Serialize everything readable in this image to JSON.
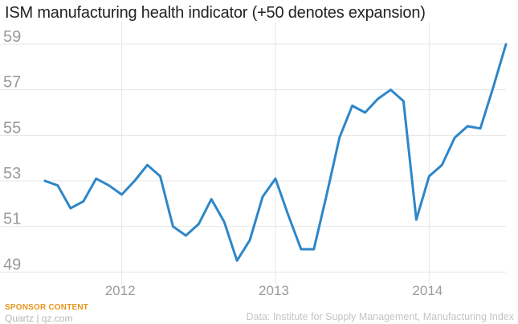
{
  "chart_data": {
    "type": "line",
    "title": "ISM manufacturing health indicator (+50 denotes expansion)",
    "xlabel": "",
    "ylabel": "",
    "ylim": [
      48.8,
      59.6
    ],
    "xlim": [
      "2011-06",
      "2014-07"
    ],
    "y_ticks": [
      "49",
      "51",
      "53",
      "55",
      "57",
      "59"
    ],
    "x_ticks": [
      {
        "label": "2012",
        "at": "2012-01"
      },
      {
        "label": "2013",
        "at": "2013-01"
      },
      {
        "label": "2014",
        "at": "2014-01"
      }
    ],
    "grid": true,
    "color": "#2e86c8",
    "series": [
      {
        "x": [
          "2011-07",
          "2011-08",
          "2011-09",
          "2011-10",
          "2011-11",
          "2011-12",
          "2012-01",
          "2012-02",
          "2012-03",
          "2012-04",
          "2012-05",
          "2012-06",
          "2012-07",
          "2012-08",
          "2012-09",
          "2012-10",
          "2012-11",
          "2012-12",
          "2013-01",
          "2013-02",
          "2013-03",
          "2013-04",
          "2013-05",
          "2013-06",
          "2013-07",
          "2013-08",
          "2013-09",
          "2013-10",
          "2013-11",
          "2013-12",
          "2014-01",
          "2014-02",
          "2014-03",
          "2014-04",
          "2014-05",
          "2014-06",
          "2014-07"
        ],
        "values": [
          53.0,
          52.8,
          51.8,
          52.1,
          53.1,
          52.8,
          52.4,
          53.0,
          53.7,
          53.2,
          51.0,
          50.6,
          51.1,
          52.2,
          51.2,
          49.5,
          50.4,
          52.3,
          53.1,
          51.5,
          50.0,
          50.0,
          52.4,
          54.9,
          56.3,
          56.0,
          56.6,
          57.0,
          56.5,
          51.3,
          53.2,
          53.7,
          54.9,
          55.4,
          55.3,
          57.1,
          59.0
        ]
      }
    ]
  },
  "footer": {
    "sponsor": "SPONSOR CONTENT",
    "credit": "Quartz | qz.com",
    "source": "Data: Institute for Supply Management, Manufacturing Index"
  }
}
